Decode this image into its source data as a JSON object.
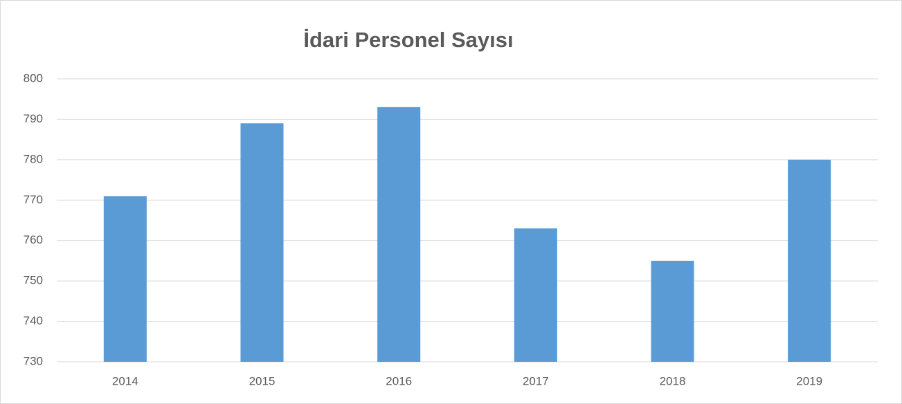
{
  "chart_data": {
    "type": "bar",
    "title": "İdari Personel Sayısı",
    "categories": [
      "2014",
      "2015",
      "2016",
      "2017",
      "2018",
      "2019"
    ],
    "values": [
      771,
      789,
      793,
      763,
      755,
      780
    ],
    "color": "#5b9bd5",
    "ylim": [
      730,
      800
    ],
    "yticks": [
      730,
      740,
      750,
      760,
      770,
      780,
      790,
      800
    ],
    "grid": true
  }
}
